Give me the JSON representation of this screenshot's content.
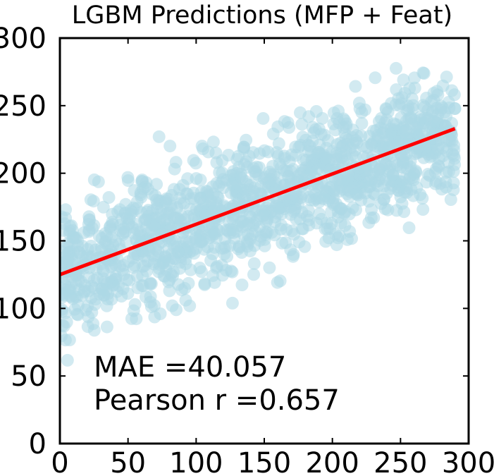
{
  "chart_data": {
    "type": "scatter",
    "title": "LGBM Predictions (MFP + Feat)",
    "xlabel": "",
    "ylabel": "",
    "xlim": [
      0,
      300
    ],
    "ylim": [
      0,
      300
    ],
    "x_ticks": [
      0,
      50,
      100,
      150,
      200,
      250,
      300
    ],
    "y_ticks": [
      0,
      50,
      100,
      150,
      200,
      250,
      300
    ],
    "x_tick_labels": [
      "0",
      "50",
      "100",
      "150",
      "200",
      "250",
      "300"
    ],
    "y_tick_labels": [
      "0",
      "50",
      "100",
      "150",
      "200",
      "250",
      "300"
    ],
    "grid": false,
    "series": [
      {
        "name": "predictions",
        "kind": "scatter",
        "color": "#add8e6",
        "x_range": [
          0,
          290
        ],
        "approx_trend": {
          "slope": 0.372,
          "intercept": 125
        },
        "residual_spread": 40
      },
      {
        "name": "regression fit",
        "kind": "line",
        "color": "#ff0000",
        "x": [
          0,
          290
        ],
        "y": [
          125,
          233
        ]
      }
    ],
    "annotations": {
      "mae": "MAE =40.057",
      "pearson": "Pearson r =0.657"
    }
  }
}
